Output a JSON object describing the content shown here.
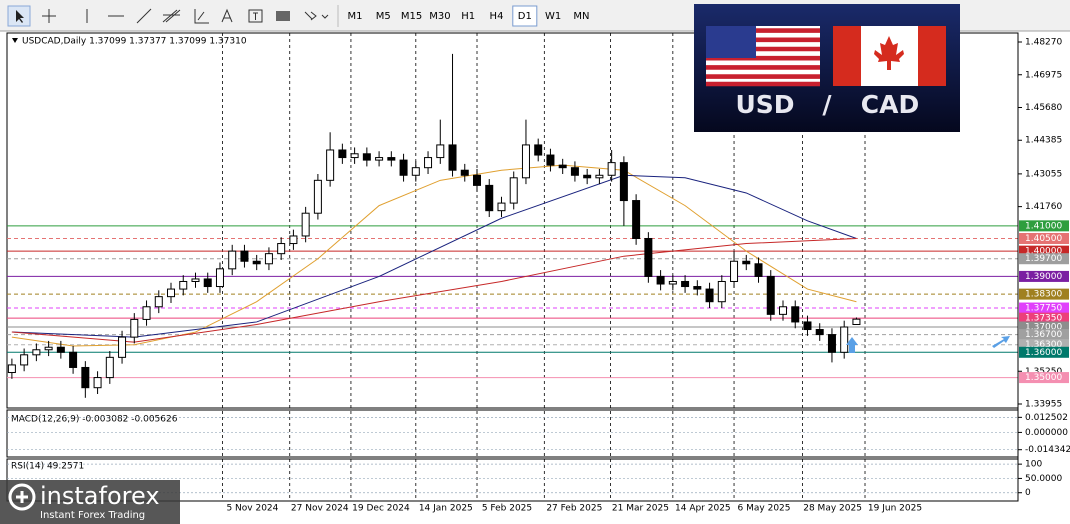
{
  "toolbar": {
    "timeframes": [
      "M1",
      "M5",
      "M15",
      "M30",
      "H1",
      "H4",
      "D1",
      "W1",
      "MN"
    ],
    "active": "D1"
  },
  "chart_data": {
    "type": "candlestick",
    "title": "USDCAD,Daily  1.37099 1.37377 1.37099 1.37310",
    "open": [
      1.352,
      1.355,
      1.359,
      1.361,
      1.362,
      1.36,
      1.354,
      1.346,
      1.35,
      1.358,
      1.366,
      1.373,
      1.378,
      1.382,
      1.385,
      1.388,
      1.389,
      1.386,
      1.393,
      1.4,
      1.396,
      1.395,
      1.399,
      1.403,
      1.406,
      1.415,
      1.428,
      1.44,
      1.437,
      1.4385,
      1.436,
      1.437,
      1.436,
      1.43,
      1.433,
      1.437,
      1.442,
      1.432,
      1.43,
      1.426,
      1.416,
      1.419,
      1.429,
      1.442,
      1.438,
      1.434,
      1.433,
      1.43,
      1.429,
      1.43,
      1.435,
      1.42,
      1.405,
      1.39,
      1.387,
      1.388,
      1.386,
      1.385,
      1.38,
      1.388,
      1.396,
      1.395,
      1.39,
      1.375,
      1.378,
      1.372,
      1.369,
      1.367,
      1.36,
      1.37099
    ],
    "high": [
      1.3575,
      1.3615,
      1.3635,
      1.3645,
      1.3645,
      1.3625,
      1.3565,
      1.3525,
      1.3605,
      1.3685,
      1.3755,
      1.3805,
      1.3845,
      1.3875,
      1.3905,
      1.3915,
      1.3915,
      1.3955,
      1.4025,
      1.4025,
      1.3985,
      1.4015,
      1.4055,
      1.4085,
      1.4175,
      1.4305,
      1.447,
      1.4425,
      1.441,
      1.441,
      1.4395,
      1.4395,
      1.4385,
      1.4355,
      1.4395,
      1.452,
      1.478,
      1.4345,
      1.4325,
      1.4285,
      1.4215,
      1.4315,
      1.452,
      1.4445,
      1.4405,
      1.4365,
      1.4355,
      1.4325,
      1.4325,
      1.44,
      1.4375,
      1.4225,
      1.4075,
      1.3925,
      1.3905,
      1.3905,
      1.3885,
      1.3875,
      1.3905,
      1.4,
      1.3985,
      1.3975,
      1.3925,
      1.3805,
      1.3805,
      1.3745,
      1.3715,
      1.3695,
      1.3725,
      1.37377
    ],
    "low": [
      1.3495,
      1.3525,
      1.3565,
      1.3585,
      1.3575,
      1.3515,
      1.342,
      1.3435,
      1.3475,
      1.3555,
      1.3635,
      1.3705,
      1.3755,
      1.3795,
      1.3825,
      1.3855,
      1.3835,
      1.3835,
      1.3905,
      1.3935,
      1.3925,
      1.3925,
      1.3965,
      1.4005,
      1.4035,
      1.4125,
      1.4255,
      1.4345,
      1.4345,
      1.4335,
      1.4335,
      1.4335,
      1.4275,
      1.4275,
      1.4305,
      1.4345,
      1.4295,
      1.4275,
      1.4235,
      1.4135,
      1.4135,
      1.4165,
      1.4265,
      1.4355,
      1.4315,
      1.4305,
      1.4275,
      1.4265,
      1.4265,
      1.4275,
      1.41,
      1.4025,
      1.3875,
      1.3845,
      1.3845,
      1.3835,
      1.3825,
      1.3775,
      1.3775,
      1.3855,
      1.3925,
      1.3875,
      1.3725,
      1.3725,
      1.3695,
      1.3665,
      1.3645,
      1.356,
      1.3575,
      1.37099
    ],
    "close": [
      1.355,
      1.359,
      1.361,
      1.362,
      1.36,
      1.354,
      1.346,
      1.35,
      1.358,
      1.366,
      1.373,
      1.378,
      1.382,
      1.385,
      1.388,
      1.389,
      1.386,
      1.393,
      1.4,
      1.396,
      1.395,
      1.399,
      1.403,
      1.406,
      1.415,
      1.428,
      1.44,
      1.437,
      1.4385,
      1.436,
      1.437,
      1.436,
      1.43,
      1.433,
      1.437,
      1.442,
      1.432,
      1.43,
      1.426,
      1.416,
      1.419,
      1.429,
      1.442,
      1.438,
      1.434,
      1.433,
      1.43,
      1.429,
      1.43,
      1.435,
      1.42,
      1.405,
      1.39,
      1.387,
      1.388,
      1.386,
      1.385,
      1.38,
      1.388,
      1.396,
      1.395,
      1.39,
      1.375,
      1.378,
      1.372,
      1.369,
      1.367,
      1.36,
      1.37,
      1.3731
    ],
    "series": [
      {
        "color": "#e0a030",
        "x": [
          0,
          5,
          10,
          15,
          20,
          25,
          30,
          35,
          40,
          45,
          50,
          55,
          60,
          65,
          69
        ],
        "values": [
          1.366,
          1.3625,
          1.363,
          1.368,
          1.38,
          1.397,
          1.418,
          1.428,
          1.432,
          1.434,
          1.432,
          1.418,
          1.4,
          1.385,
          1.38
        ]
      },
      {
        "color": "#1a237e",
        "x": [
          0,
          10,
          20,
          30,
          40,
          50,
          55,
          60,
          65,
          69
        ],
        "values": [
          1.368,
          1.366,
          1.372,
          1.39,
          1.413,
          1.43,
          1.429,
          1.423,
          1.412,
          1.405
        ]
      },
      {
        "color": "#c62828",
        "x": [
          0,
          10,
          20,
          30,
          40,
          50,
          60,
          69
        ],
        "values": [
          1.368,
          1.364,
          1.371,
          1.38,
          1.388,
          1.398,
          1.403,
          1.405
        ]
      }
    ],
    "xlim": [
      -0.4,
      82.2
    ],
    "xticks": [
      {
        "value": 17.2,
        "label": "5 Nov 2024"
      },
      {
        "value": 22.7,
        "label": "27 Nov 2024"
      },
      {
        "value": 27.7,
        "label": "19 Dec 2024"
      },
      {
        "value": 33,
        "label": "14 Jan 2025"
      },
      {
        "value": 38,
        "label": "5 Feb 2025"
      },
      {
        "value": 43.5,
        "label": "27 Feb 2025"
      },
      {
        "value": 48.9,
        "label": "21 Mar 2025"
      },
      {
        "value": 54,
        "label": "14 Apr 2025"
      },
      {
        "value": 59,
        "label": "6 May 2025"
      },
      {
        "value": 64.6,
        "label": "28 May 2025"
      },
      {
        "value": 69.7,
        "label": "19 Jun 2025"
      }
    ],
    "ylim": [
      1.33797,
      1.48626
    ],
    "yticks": [
      {
        "value": 1.4827,
        "label": "1.48270"
      },
      {
        "value": 1.46975,
        "label": "1.46975"
      },
      {
        "value": 1.4568,
        "label": "1.45680"
      },
      {
        "value": 1.44385,
        "label": "1.44385"
      },
      {
        "value": 1.43055,
        "label": "1.43055"
      },
      {
        "value": 1.4176,
        "label": "1.41760"
      },
      {
        "value": 1.3525,
        "label": "1.35250"
      },
      {
        "value": 1.33955,
        "label": "1.33955"
      }
    ],
    "levels": [
      {
        "value": 1.41,
        "label": "1.41000",
        "color": "#2e9e3e",
        "dash": false
      },
      {
        "value": 1.405,
        "label": "1.40500",
        "color": "#e57373",
        "dash": true
      },
      {
        "value": 1.4,
        "label": "1.40000",
        "color": "#c62828",
        "dash": false
      },
      {
        "value": 1.397,
        "label": "1.39700",
        "color": "#9e9e9e",
        "dash": true
      },
      {
        "value": 1.39,
        "label": "1.39000",
        "color": "#7b1fa2",
        "dash": false
      },
      {
        "value": 1.383,
        "label": "1.38300",
        "color": "#a08020",
        "dash": true
      },
      {
        "value": 1.3775,
        "label": "1.37750",
        "color": "#e040fb",
        "dash": true
      },
      {
        "value": 1.3735,
        "label": "1.37350",
        "color": "#ec407a",
        "dash": false
      },
      {
        "value": 1.37,
        "label": "1.37000",
        "color": "#8d8d8d",
        "dash": false
      },
      {
        "value": 1.367,
        "label": "1.36700",
        "color": "#a0a0a0",
        "dash": true
      },
      {
        "value": 1.363,
        "label": "1.36300",
        "color": "#b0b0b0",
        "dash": true
      },
      {
        "value": 1.36,
        "label": "1.36000",
        "color": "#00796b",
        "dash": false
      },
      {
        "value": 1.35,
        "label": "1.35000",
        "color": "#f48fb1",
        "dash": false
      }
    ]
  },
  "macd": {
    "title": "MACD(12,26,9) -0.003082 -0.005626",
    "ylim": [
      -0.0204,
      0.0186
    ],
    "yticks": [
      {
        "value": 0.012502,
        "label": "0.012502"
      },
      {
        "value": 0,
        "label": "0.000000"
      },
      {
        "value": -0.014342,
        "label": "-0.014342"
      }
    ]
  },
  "rsi": {
    "title": "RSI(14) 49.2571",
    "ylim": [
      -29,
      118
    ],
    "yticks": [
      100,
      {
        "value": 50,
        "label": "50.0000"
      },
      0
    ]
  },
  "flag_panel": {
    "base": "USD",
    "separator": "/",
    "quote": "CAD"
  },
  "logo": {
    "name": "instaforex",
    "tagline": "Instant Forex Trading"
  }
}
